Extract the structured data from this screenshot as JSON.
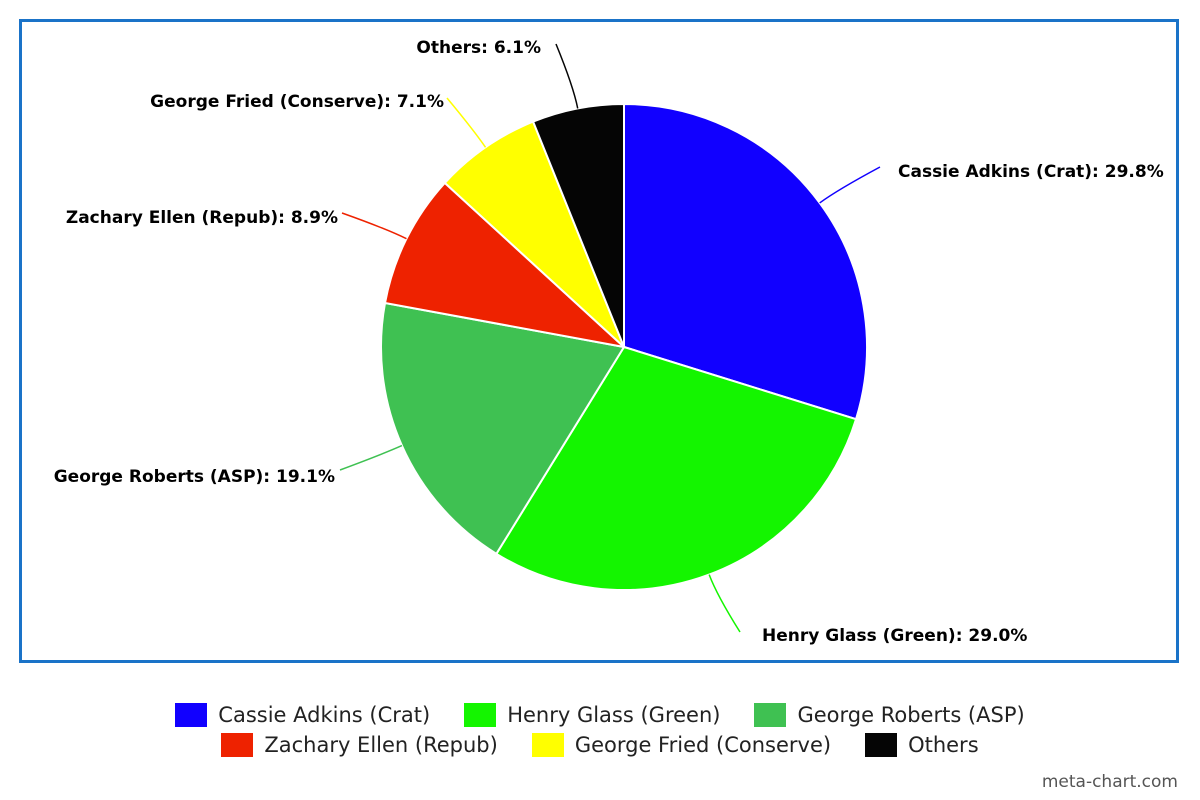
{
  "chart_data": {
    "type": "pie",
    "categories": [
      "Cassie Adkins (Crat)",
      "Henry Glass (Green)",
      "George Roberts (ASP)",
      "Zachary Ellen (Repub)",
      "George Fried (Conserve)",
      "Others"
    ],
    "values": [
      29.8,
      29.0,
      19.1,
      8.9,
      7.1,
      6.1
    ],
    "colors": [
      "#1100ff",
      "#14f500",
      "#3fc152",
      "#ee2200",
      "#ffff00",
      "#050505"
    ],
    "labels": [
      "Cassie Adkins (Crat): 29.8%",
      "Henry Glass (Green): 29.0%",
      "George Roberts (ASP): 19.1%",
      "Zachary Ellen (Repub): 8.9%",
      "George Fried (Conserve): 7.1%",
      "Others: 6.1%"
    ],
    "start": "top",
    "direction": "clockwise",
    "legend_position": "bottom"
  },
  "watermark": "meta-chart.com"
}
